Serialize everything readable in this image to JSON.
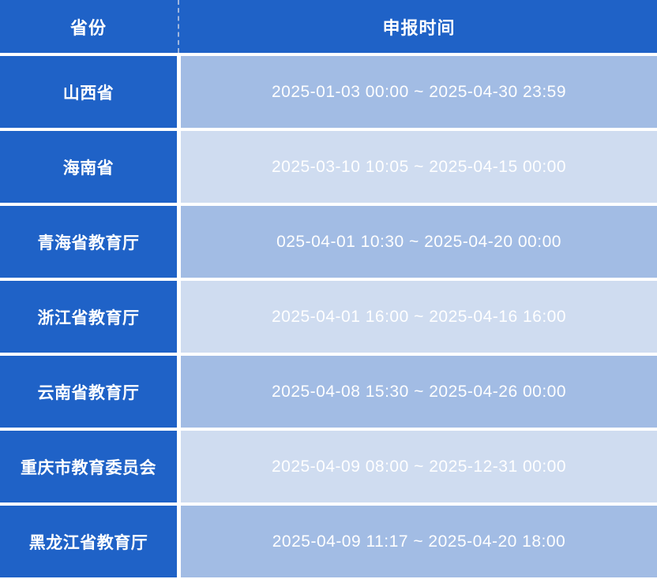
{
  "table": {
    "header_province": "省份",
    "header_time": "申报时间",
    "rows": [
      {
        "province": "山西省",
        "time": "2025-01-03 00:00 ~ 2025-04-30 23:59"
      },
      {
        "province": "海南省",
        "time": "2025-03-10 10:05 ~ 2025-04-15 00:00"
      },
      {
        "province": "青海省教育厅",
        "time": "025-04-01 10:30 ~ 2025-04-20 00:00"
      },
      {
        "province": "浙江省教育厅",
        "time": "2025-04-01 16:00 ~ 2025-04-16 16:00"
      },
      {
        "province": "云南省教育厅",
        "time": "2025-04-08 15:30 ~ 2025-04-26 00:00"
      },
      {
        "province": "重庆市教育委员会",
        "time": "2025-04-09 08:00 ~ 2025-12-31 00:00"
      },
      {
        "province": "黑龙江省教育厅",
        "time": "2025-04-09 11:17 ~ 2025-04-20 18:00"
      }
    ]
  },
  "colors": {
    "header_bg": "#1f62c7",
    "province_cell_bg": "#1f62c7",
    "time_cell_bg_dark": "#a2bce4",
    "time_cell_bg_light": "#cfdcf0",
    "text": "#ffffff",
    "divider_dash": "#9fb6dd",
    "gap": "#ffffff"
  },
  "chart_data": {
    "type": "table",
    "columns": [
      "省份",
      "申报时间"
    ],
    "rows": [
      [
        "山西省",
        "2025-01-03 00:00 ~ 2025-04-30 23:59"
      ],
      [
        "海南省",
        "2025-03-10 10:05 ~ 2025-04-15 00:00"
      ],
      [
        "青海省教育厅",
        "025-04-01 10:30 ~ 2025-04-20 00:00"
      ],
      [
        "浙江省教育厅",
        "2025-04-01 16:00 ~ 2025-04-16 16:00"
      ],
      [
        "云南省教育厅",
        "2025-04-08 15:30 ~ 2025-04-26 00:00"
      ],
      [
        "重庆市教育委员会",
        "2025-04-09 08:00 ~ 2025-12-31 00:00"
      ],
      [
        "黑龙江省教育厅",
        "2025-04-09 11:17 ~ 2025-04-20 18:00"
      ]
    ]
  }
}
